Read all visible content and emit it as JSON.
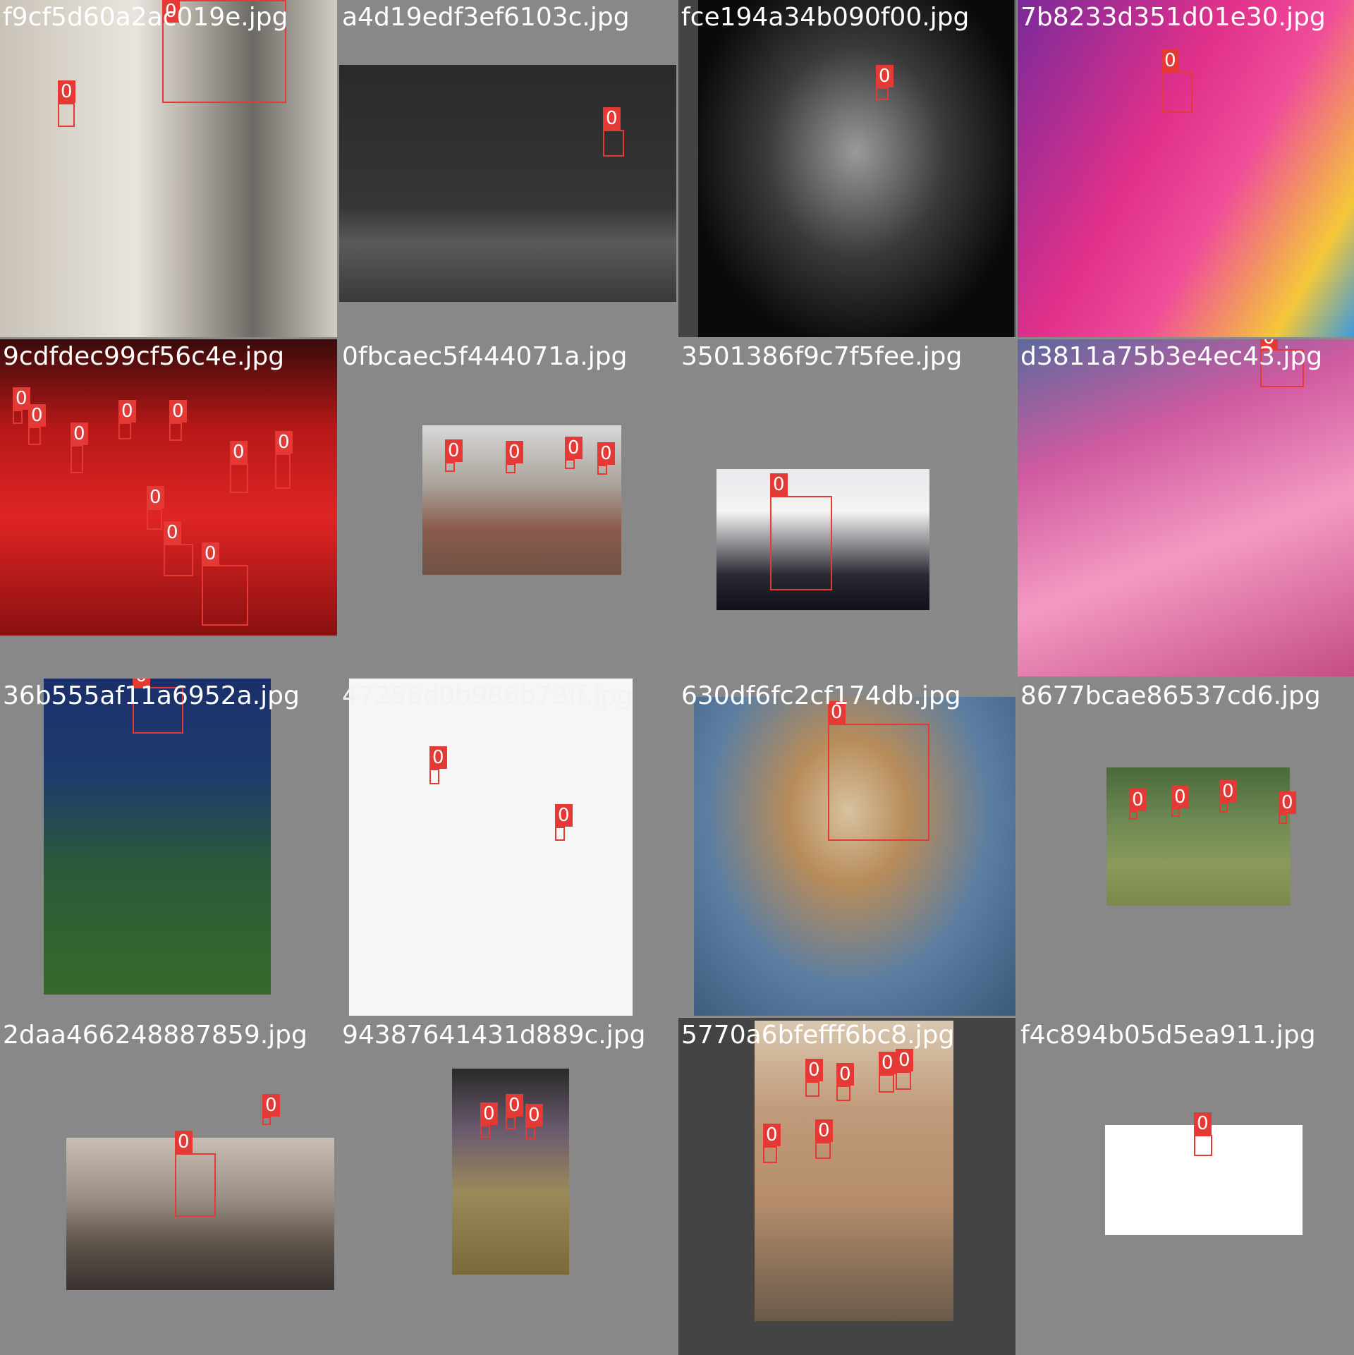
{
  "mosaic": {
    "tiles": [
      {
        "filename": "f9cf5d60a2ac019e.jpg",
        "label": "0",
        "bg": "#d8d4cc"
      },
      {
        "filename": "a4d19edf3ef6103c.jpg",
        "label": "0",
        "bg": "#3c3c3c"
      },
      {
        "filename": "fce194a34b090f00.jpg",
        "label": "0",
        "bg": "#1a1a1a"
      },
      {
        "filename": "7b8233d351d01e30.jpg",
        "label": "0",
        "bg": "#e23a8e"
      },
      {
        "filename": "9cdfdec99cf56c4e.jpg",
        "label": "0",
        "bg": "#c81c1c"
      },
      {
        "filename": "0fbcaec5f444071a.jpg",
        "label": "0",
        "bg": "#9c8f86"
      },
      {
        "filename": "3501386f9c7f5fee.jpg",
        "label": "0",
        "bg": "#e6e6ec"
      },
      {
        "filename": "d3811a75b3e4ec43.jpg",
        "label": "0",
        "bg": "#d24d8b"
      },
      {
        "filename": "36b555af11a6952a.jpg",
        "label": "0",
        "bg": "#1f3b6d"
      },
      {
        "filename": "47256d0b986b73ff.jpg",
        "label": "0",
        "bg": "#f6f6f6"
      },
      {
        "filename": "630df6fc2cf174db.jpg",
        "label": "0",
        "bg": "#5b7ea2"
      },
      {
        "filename": "8677bcae86537cd6.jpg",
        "label": "0",
        "bg": "#6f8a55"
      },
      {
        "filename": "2daa466248887859.jpg",
        "label": "0",
        "bg": "#7d746b"
      },
      {
        "filename": "94387641431d889c.jpg",
        "label": "0",
        "bg": "#6a5a6e"
      },
      {
        "filename": "5770a6bfefff6bc8.jpg",
        "label": "0",
        "bg": "#b58d6b"
      },
      {
        "filename": "f4c894b05d5ea911.jpg",
        "label": "0",
        "bg": "#ffffff"
      }
    ]
  },
  "colors": {
    "box": "#e53935",
    "tile_gray": "#888888",
    "tile_dark_gray": "#444444"
  }
}
